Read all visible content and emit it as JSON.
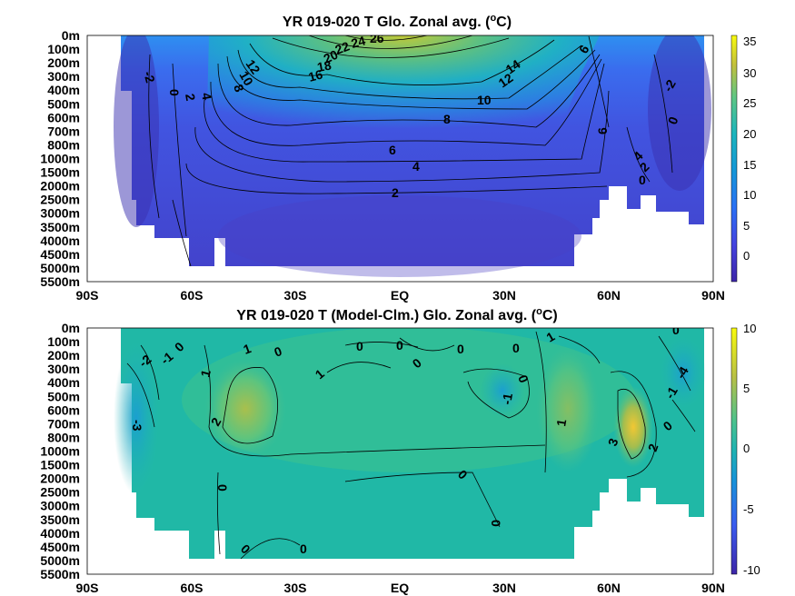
{
  "chart_data": [
    {
      "type": "heatmap",
      "title": "YR 019-020 T Glo. Zonal avg. (°C)",
      "title_main": "YR 019-020 T Glo. Zonal avg. (",
      "title_sup": "o",
      "title_tail": "C)",
      "x_ticks": [
        "90S",
        "60S",
        "30S",
        "EQ",
        "30N",
        "60N",
        "90N"
      ],
      "x_range": [
        -90,
        90
      ],
      "y_ticks": [
        "0m",
        "100m",
        "200m",
        "300m",
        "400m",
        "500m",
        "600m",
        "700m",
        "800m",
        "1000m",
        "1500m",
        "2000m",
        "2500m",
        "3000m",
        "3500m",
        "4000m",
        "4500m",
        "5000m",
        "5500m"
      ],
      "colorbar": {
        "ticks": [
          "35",
          "30",
          "25",
          "20",
          "15",
          "10",
          "5",
          "0"
        ],
        "range": [
          -3,
          36
        ],
        "colormap": "parula"
      },
      "colors": {
        "low": "#3d26a8",
        "mid": "#1fb7bf",
        "high": "#f9fb0e"
      },
      "contour_labels": [
        "-2",
        "0",
        "2",
        "4",
        "12",
        "10",
        "8",
        "16",
        "18",
        "20",
        "22",
        "24",
        "26",
        "14",
        "12",
        "10",
        "8",
        "6",
        "4",
        "2",
        "6",
        "6",
        "4",
        "2",
        "0",
        "-2",
        "0"
      ]
    },
    {
      "type": "heatmap",
      "title": "YR 019-020 T (Model-Clm.) Glo. Zonal avg. (°C)",
      "title_main": "YR 019-020 T (Model-Clm.) Glo. Zonal avg. (",
      "title_sup": "o",
      "title_tail": "C)",
      "x_ticks": [
        "90S",
        "60S",
        "30S",
        "EQ",
        "30N",
        "60N",
        "90N"
      ],
      "x_range": [
        -90,
        90
      ],
      "y_ticks": [
        "0m",
        "100m",
        "200m",
        "300m",
        "400m",
        "500m",
        "600m",
        "700m",
        "800m",
        "1000m",
        "1500m",
        "2000m",
        "2500m",
        "3000m",
        "3500m",
        "4000m",
        "4500m",
        "5000m",
        "5500m"
      ],
      "colorbar": {
        "ticks": [
          "10",
          "5",
          "0",
          "-5",
          "-10"
        ],
        "range": [
          -10,
          10
        ],
        "colormap": "parula"
      },
      "colors": {
        "low": "#3d26a8",
        "mid": "#20b2aa",
        "high": "#f9fb0e"
      },
      "contour_labels": [
        "0",
        "-2",
        "-1",
        "-3",
        "1",
        "0",
        "1",
        "2",
        "0",
        "0",
        "0",
        "0",
        "1",
        "0",
        "0",
        "0",
        "1",
        "0",
        "-1",
        "0",
        "1",
        "0",
        "3",
        "-4",
        "-1",
        "0",
        "2",
        "0",
        "0"
      ]
    }
  ]
}
